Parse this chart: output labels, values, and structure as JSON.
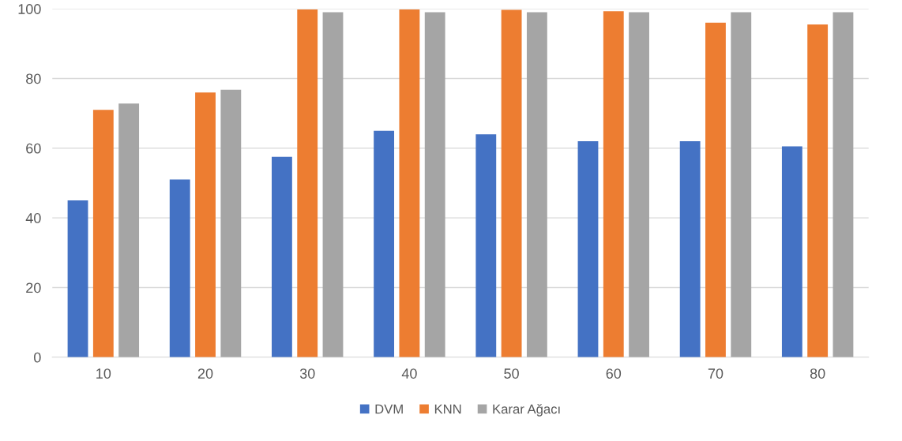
{
  "chart_data": {
    "type": "bar",
    "categories": [
      "10",
      "20",
      "30",
      "40",
      "50",
      "60",
      "70",
      "80"
    ],
    "series": [
      {
        "name": "DVM",
        "color": "#4472c4",
        "values": [
          45,
          51,
          57.5,
          65,
          64,
          62,
          62,
          60.5
        ]
      },
      {
        "name": "KNN",
        "color": "#ed7d31",
        "values": [
          71,
          76,
          99.8,
          99.8,
          99.7,
          99.3,
          96,
          95.5
        ]
      },
      {
        "name": "Karar Ağacı",
        "color": "#a5a5a5",
        "values": [
          72.8,
          76.8,
          99,
          99,
          99,
          99,
          99,
          99
        ]
      }
    ],
    "ylim": [
      0,
      100
    ],
    "yticks": [
      0,
      20,
      40,
      60,
      80,
      100
    ],
    "grid": "y",
    "legend": "bottom"
  }
}
